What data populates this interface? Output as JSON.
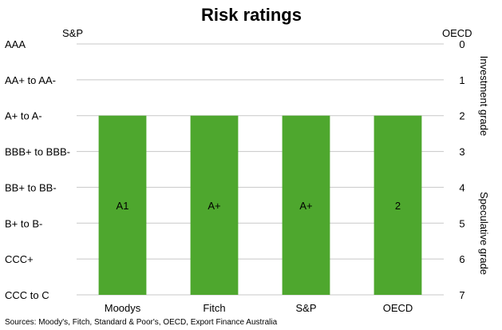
{
  "chart_data": {
    "type": "bar",
    "title": "Risk ratings",
    "left_axis_label": "S&P",
    "right_axis_label": "OECD",
    "categories": [
      "Moodys",
      "Fitch",
      "S&P",
      "OECD"
    ],
    "series": [
      {
        "values": [
          2,
          2,
          2,
          2
        ],
        "data_labels": [
          "A1",
          "A+",
          "A+",
          "2"
        ],
        "color": "#4ea72e"
      }
    ],
    "bar_base": 7,
    "left_tick_labels": [
      "AAA",
      "AA+ to AA-",
      "A+ to A-",
      "BBB+ to BBB-",
      "BB+ to BB-",
      "B+ to B-",
      "CCC+",
      "CCC to C"
    ],
    "right_tick_labels": [
      "0",
      "1",
      "2",
      "3",
      "4",
      "5",
      "6",
      "7"
    ],
    "ylim": [
      0,
      7
    ],
    "y_inverted": true,
    "grid": true,
    "right_annotations": [
      "Investment grade",
      "Speculative grade"
    ]
  },
  "source": "Sources: Moody's, Fitch, Standard & Poor's, OECD, Export Finance Australia"
}
